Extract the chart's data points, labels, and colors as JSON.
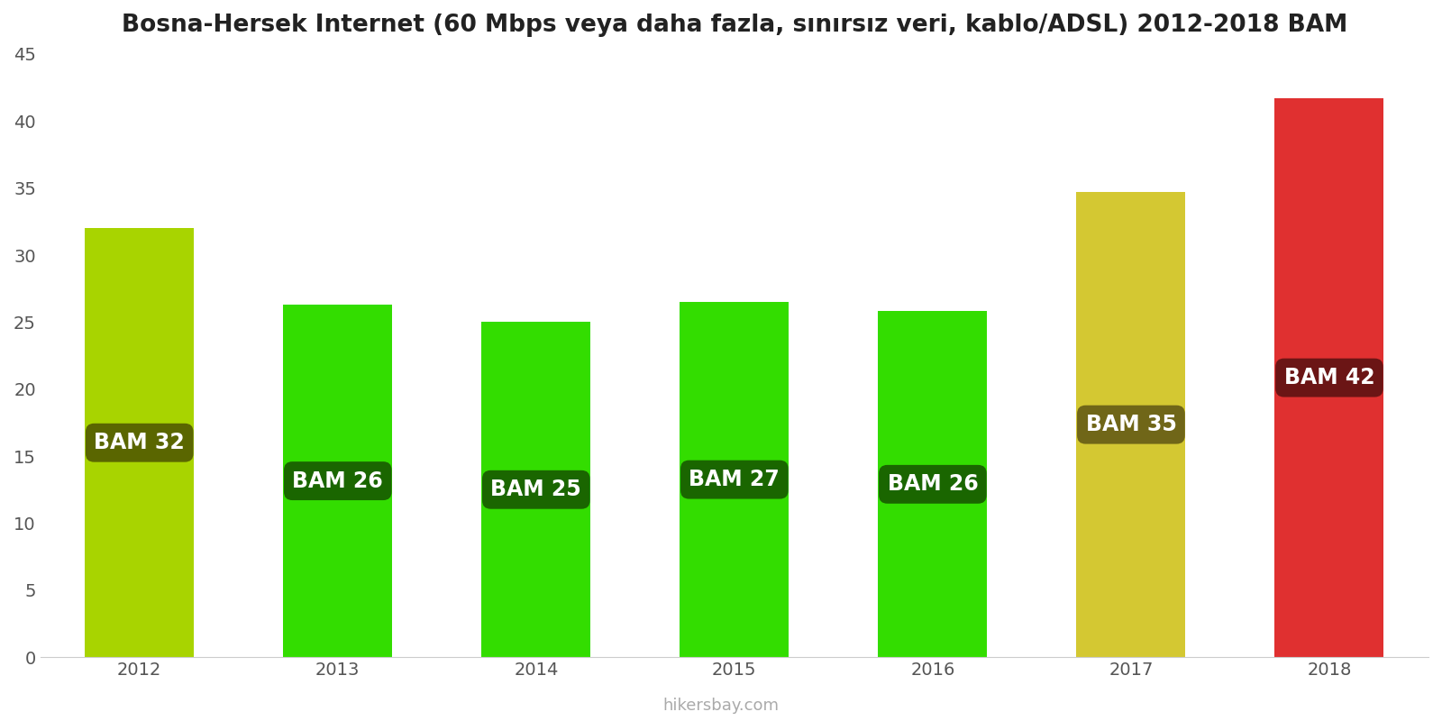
{
  "years": [
    2012,
    2013,
    2014,
    2015,
    2016,
    2017,
    2018
  ],
  "values": [
    32,
    26.3,
    25,
    26.5,
    25.8,
    34.7,
    41.7
  ],
  "bar_colors": [
    "#a8d400",
    "#33dd00",
    "#33dd00",
    "#33dd00",
    "#33dd00",
    "#d4c832",
    "#e03030"
  ],
  "label_bg_colors": [
    "#5a6600",
    "#1a6600",
    "#1a6600",
    "#1a6600",
    "#1a6600",
    "#706618",
    "#6b1515"
  ],
  "labels": [
    "BAM 32",
    "BAM 26",
    "BAM 25",
    "BAM 27",
    "BAM 26",
    "BAM 35",
    "BAM 42"
  ],
  "title": "Bosna-Hersek Internet (60 Mbps veya daha fazla, sınırsız veri, kablo/ADSL) 2012-2018 BAM",
  "ylim": [
    0,
    45
  ],
  "yticks": [
    0,
    5,
    10,
    15,
    20,
    25,
    30,
    35,
    40,
    45
  ],
  "watermark": "hikersbay.com",
  "title_fontsize": 19,
  "label_fontsize": 17,
  "tick_fontsize": 14,
  "watermark_fontsize": 13,
  "bar_width": 0.55
}
